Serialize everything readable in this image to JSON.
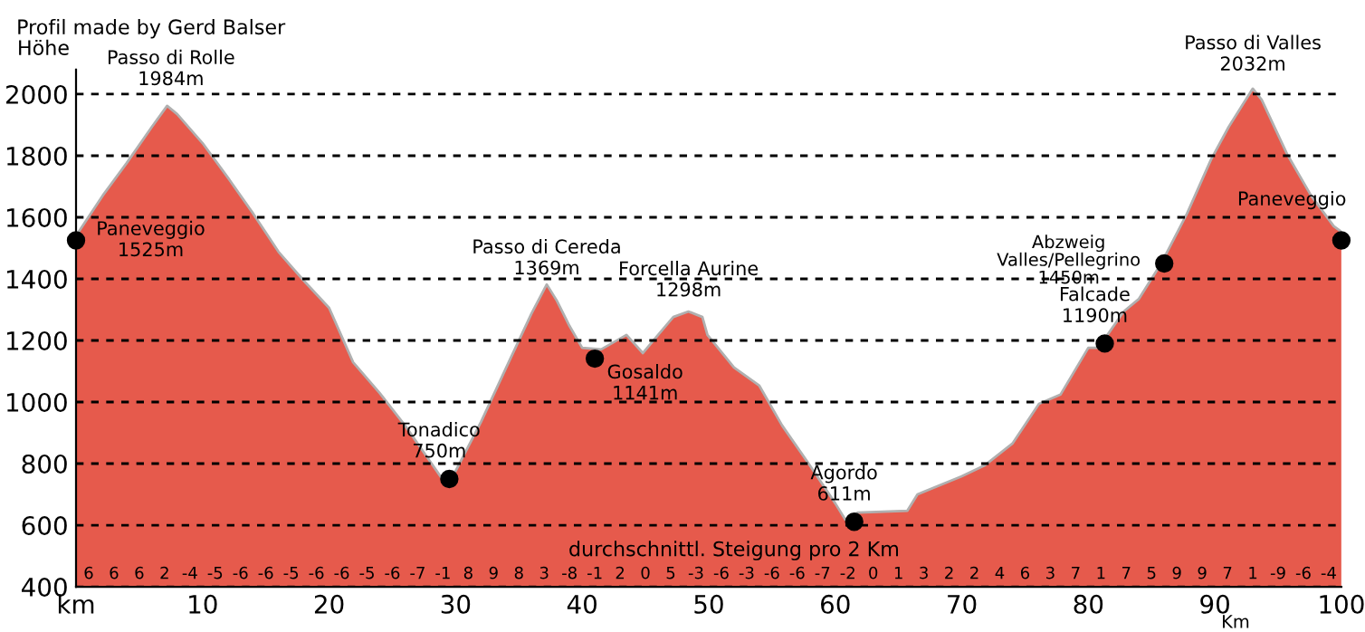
{
  "chart_data": {
    "type": "area",
    "title": "Profil made by Gerd Balser",
    "ylabel": "Höhe",
    "xlabel": "Km",
    "x": [
      0,
      2.1,
      4,
      6,
      7.2,
      8,
      10,
      12,
      14,
      16,
      18,
      20,
      21.9,
      24,
      26,
      28,
      29.2,
      30,
      32,
      34,
      36,
      37.2,
      38,
      39,
      40,
      41.5,
      43.5,
      44.8,
      46,
      47.2,
      48.4,
      49.5,
      49.9,
      52,
      54,
      55.8,
      57.8,
      60,
      60.8,
      61.8,
      65.7,
      66.5,
      70,
      71.8,
      74,
      76.1,
      77.8,
      80,
      80.8,
      82.8,
      84,
      85.8,
      87.8,
      89.7,
      91.1,
      93,
      93.7,
      95.7,
      97.6,
      99.4,
      100
    ],
    "series": [
      {
        "color": "#e65a4c",
        "values": [
          1540,
          1670,
          1776,
          1894,
          1962,
          1935,
          1841,
          1729,
          1612,
          1488,
          1394,
          1306,
          1129,
          1029,
          924,
          806,
          735,
          776,
          935,
          1112,
          1288,
          1382,
          1329,
          1247,
          1176,
          1171,
          1218,
          1159,
          1218,
          1276,
          1294,
          1276,
          1218,
          1112,
          1053,
          924,
          806,
          671,
          618,
          641,
          647,
          700,
          759,
          794,
          865,
          994,
          1024,
          1176,
          1176,
          1294,
          1335,
          1453,
          1612,
          1788,
          1894,
          2018,
          1982,
          1806,
          1671,
          1571,
          1553
        ]
      },
      {
        "type": "scatter",
        "color": "#000000",
        "marker": "circle",
        "x": [
          0,
          29.5,
          41,
          61.5,
          81.3,
          86,
          100
        ],
        "values": [
          1525,
          750,
          1141,
          611,
          1190,
          1450,
          1525
        ]
      }
    ],
    "xlim": [
      0,
      100
    ],
    "ylim": [
      400,
      2080
    ],
    "xticks": [
      {
        "value": 0,
        "label": "km"
      },
      10,
      20,
      30,
      40,
      50,
      60,
      70,
      80,
      90,
      100
    ],
    "yticks": [
      400,
      600,
      800,
      1000,
      1200,
      1400,
      1600,
      1800,
      2000
    ],
    "grid": "y",
    "line_style": "dashed",
    "annotations": [
      {
        "text": "Passo di Rolle\n1984m",
        "x": 7.5,
        "y": 1984
      },
      {
        "text": "Paneveggio\n1525m",
        "x": 0,
        "y": 1525
      },
      {
        "text": "Tonadico\n750m",
        "x": 29.5,
        "y": 750
      },
      {
        "text": "Passo di Cereda\n1369m",
        "x": 37.2,
        "y": 1369
      },
      {
        "text": "Gosaldo\n1141m",
        "x": 41,
        "y": 1141
      },
      {
        "text": "Forcella Aurine\n1298m",
        "x": 48.4,
        "y": 1298
      },
      {
        "text": "Agordo\n611m",
        "x": 61.5,
        "y": 611
      },
      {
        "text": "Falcade\n1190m",
        "x": 81.3,
        "y": 1190
      },
      {
        "text": "Abzweig\nValles/Pellegrino\n1450m",
        "x": 86,
        "y": 1450
      },
      {
        "text": "Passo di Valles\n2032m",
        "x": 93,
        "y": 2032
      },
      {
        "text": "Paneveggio",
        "x": 100,
        "y": 1525
      },
      "durchschnittl. Steigung pro 2 Km",
      "6",
      "6",
      "6",
      "2",
      "-4",
      "-5",
      "-6",
      "-6",
      "-5",
      "-6",
      "-6",
      "-5",
      "-6",
      "-7",
      "-1",
      "8",
      "9",
      "8",
      "3",
      "-8",
      "-1",
      "2",
      "0",
      "5",
      "-3",
      "-6",
      "-3",
      "-6",
      "-6",
      "-7",
      "-2",
      "0",
      "1",
      "3",
      "2",
      "2",
      "4",
      "6",
      "3",
      "7",
      "1",
      "7",
      "5",
      "9",
      "9",
      "7",
      "1",
      "-9",
      "-6",
      "-4"
    ]
  }
}
